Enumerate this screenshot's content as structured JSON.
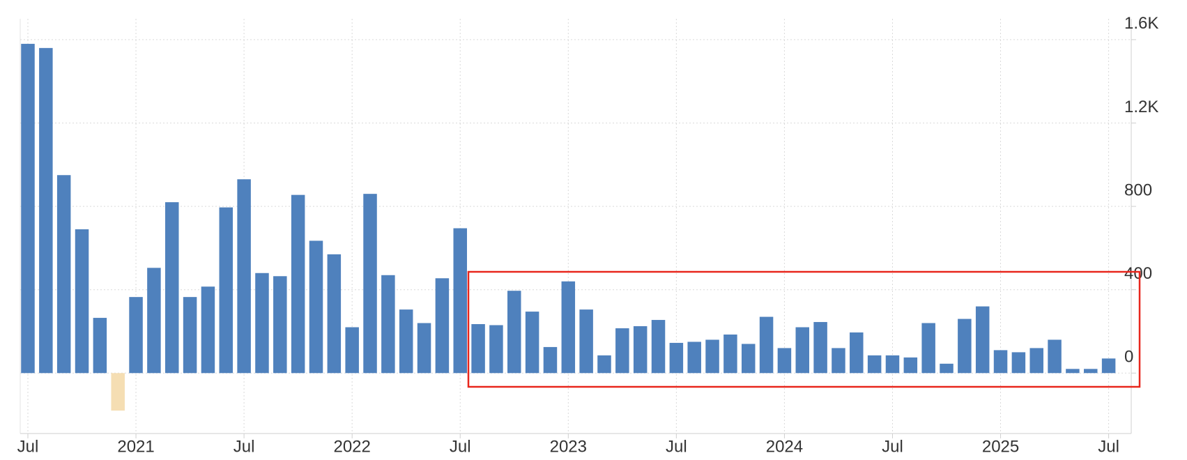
{
  "chart_data": {
    "type": "bar",
    "categories": [
      "Jul",
      null,
      null,
      null,
      null,
      null,
      "2021",
      null,
      null,
      null,
      null,
      null,
      "Jul",
      null,
      null,
      null,
      null,
      null,
      "2022",
      null,
      null,
      null,
      null,
      null,
      "Jul",
      null,
      null,
      null,
      null,
      null,
      "2023",
      null,
      null,
      null,
      null,
      null,
      "Jul",
      null,
      null,
      null,
      null,
      null,
      "2024",
      null,
      null,
      null,
      null,
      null,
      "Jul",
      null,
      null,
      null,
      null,
      null,
      "2025",
      null,
      null,
      null,
      null,
      null,
      "Jul"
    ],
    "values": [
      1580,
      1560,
      950,
      690,
      265,
      -180,
      365,
      505,
      820,
      365,
      415,
      795,
      930,
      480,
      465,
      855,
      635,
      570,
      220,
      860,
      470,
      305,
      240,
      455,
      695,
      235,
      230,
      395,
      295,
      125,
      440,
      305,
      85,
      215,
      225,
      255,
      145,
      150,
      160,
      185,
      140,
      270,
      120,
      220,
      245,
      120,
      195,
      85,
      85,
      75,
      240,
      45,
      260,
      320,
      110,
      100,
      120,
      160,
      20,
      20,
      70
    ],
    "color": "#4f81bd",
    "negative_color": "#f5deb3",
    "ylim": [
      -290,
      1700
    ],
    "yticks": [
      0,
      400,
      800,
      {
        "value": 1200,
        "label": "1.2K"
      },
      {
        "value": 1600,
        "label": "1.6K"
      }
    ],
    "grid": true
  }
}
